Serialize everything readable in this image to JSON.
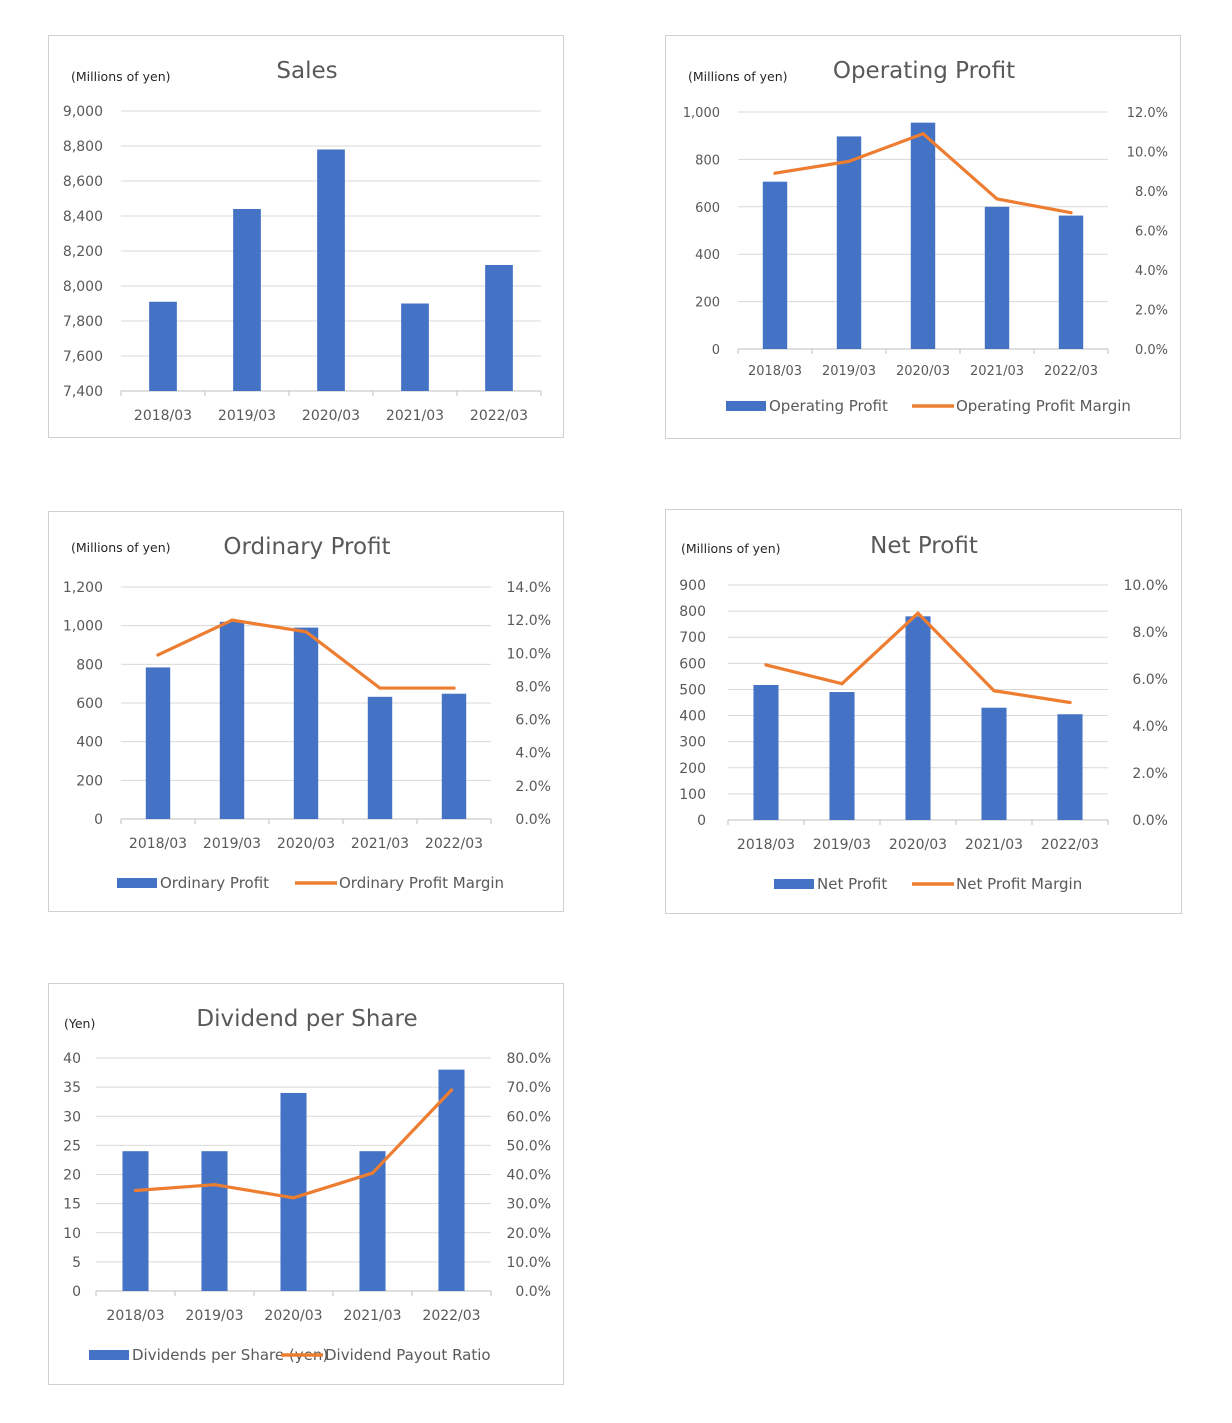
{
  "chart_data": [
    {
      "id": "sales",
      "type": "bar",
      "title": "Sales",
      "unit_label": "(Millions of yen)",
      "categories": [
        "2018/03",
        "2019/03",
        "2020/03",
        "2021/03",
        "2022/03"
      ],
      "series": [
        {
          "values": [
            7910,
            8440,
            8780,
            7900,
            8120
          ],
          "color": "#4472c4"
        }
      ],
      "ylim": [
        7400,
        9000
      ],
      "yticks": [
        "7,400",
        "7,600",
        "7,800",
        "8,000",
        "8,200",
        "8,400",
        "8,600",
        "8,800",
        "9,000"
      ],
      "grid": true
    },
    {
      "id": "operating",
      "type": "bar",
      "title": "Operating Profit",
      "unit_label": "(Millions of yen)",
      "categories": [
        "2018/03",
        "2019/03",
        "2020/03",
        "2021/03",
        "2022/03"
      ],
      "series": [
        {
          "name": "Operating Profit",
          "kind": "bar",
          "axis": "left",
          "values": [
            706,
            897,
            955,
            600,
            563
          ],
          "color": "#4472c4"
        },
        {
          "name": "Operating Profit Margin",
          "kind": "line",
          "axis": "right",
          "values": [
            8.9,
            9.5,
            10.9,
            7.6,
            6.9
          ],
          "color": "#ed7d31"
        }
      ],
      "ylim": [
        0,
        1000
      ],
      "yticks": [
        "0",
        "200",
        "400",
        "600",
        "800",
        "1,000"
      ],
      "y2lim": [
        0,
        12
      ],
      "y2ticks": [
        "0.0%",
        "2.0%",
        "4.0%",
        "6.0%",
        "8.0%",
        "10.0%",
        "12.0%"
      ],
      "grid": true,
      "legend": "bottom"
    },
    {
      "id": "ordinary",
      "type": "bar",
      "title": "Ordinary Profit",
      "unit_label": "(Millions of yen)",
      "categories": [
        "2018/03",
        "2019/03",
        "2020/03",
        "2021/03",
        "2022/03"
      ],
      "series": [
        {
          "name": "Ordinary Profit",
          "kind": "bar",
          "axis": "left",
          "values": [
            784,
            1020,
            990,
            632,
            648
          ],
          "color": "#4472c4"
        },
        {
          "name": "Ordinary Profit Margin",
          "kind": "line",
          "axis": "right",
          "values": [
            9.9,
            12.0,
            11.3,
            7.9,
            7.9
          ],
          "color": "#ed7d31"
        }
      ],
      "ylim": [
        0,
        1200
      ],
      "yticks": [
        "0",
        "200",
        "400",
        "600",
        "800",
        "1,000",
        "1,200"
      ],
      "y2lim": [
        0,
        14
      ],
      "y2ticks": [
        "0.0%",
        "2.0%",
        "4.0%",
        "6.0%",
        "8.0%",
        "10.0%",
        "12.0%",
        "14.0%"
      ],
      "grid": true,
      "legend": "bottom"
    },
    {
      "id": "net",
      "type": "bar",
      "title": "Net Profit",
      "unit_label": "(Millions of yen)",
      "categories": [
        "2018/03",
        "2019/03",
        "2020/03",
        "2021/03",
        "2022/03"
      ],
      "series": [
        {
          "name": "Net Profit",
          "kind": "bar",
          "axis": "left",
          "values": [
            517,
            490,
            780,
            430,
            405
          ],
          "color": "#4472c4"
        },
        {
          "name": "Net Profit Margin",
          "kind": "line",
          "axis": "right",
          "values": [
            6.6,
            5.8,
            8.8,
            5.5,
            5.0
          ],
          "color": "#ed7d31"
        }
      ],
      "ylim": [
        0,
        900
      ],
      "yticks": [
        "0",
        "100",
        "200",
        "300",
        "400",
        "500",
        "600",
        "700",
        "800",
        "900"
      ],
      "y2lim": [
        0,
        10
      ],
      "y2ticks": [
        "0.0%",
        "2.0%",
        "4.0%",
        "6.0%",
        "8.0%",
        "10.0%"
      ],
      "grid": true,
      "legend": "bottom"
    },
    {
      "id": "dividend",
      "type": "bar",
      "title": "Dividend per Share",
      "unit_label": "(Yen)",
      "categories": [
        "2018/03",
        "2019/03",
        "2020/03",
        "2021/03",
        "2022/03"
      ],
      "series": [
        {
          "name": "Dividends per Share (yen)",
          "kind": "bar",
          "axis": "left",
          "values": [
            24,
            24,
            34,
            24,
            38
          ],
          "color": "#4472c4"
        },
        {
          "name": "Dividend Payout Ratio",
          "kind": "line",
          "axis": "right",
          "values": [
            34.5,
            36.5,
            32.0,
            40.5,
            69.0
          ],
          "color": "#ed7d31"
        }
      ],
      "ylim": [
        0,
        40
      ],
      "yticks": [
        "0",
        "5",
        "10",
        "15",
        "20",
        "25",
        "30",
        "35",
        "40"
      ],
      "y2lim": [
        0,
        80
      ],
      "y2ticks": [
        "0.0%",
        "10.0%",
        "20.0%",
        "30.0%",
        "40.0%",
        "50.0%",
        "60.0%",
        "70.0%",
        "80.0%"
      ],
      "grid": true,
      "legend": "bottom"
    }
  ]
}
